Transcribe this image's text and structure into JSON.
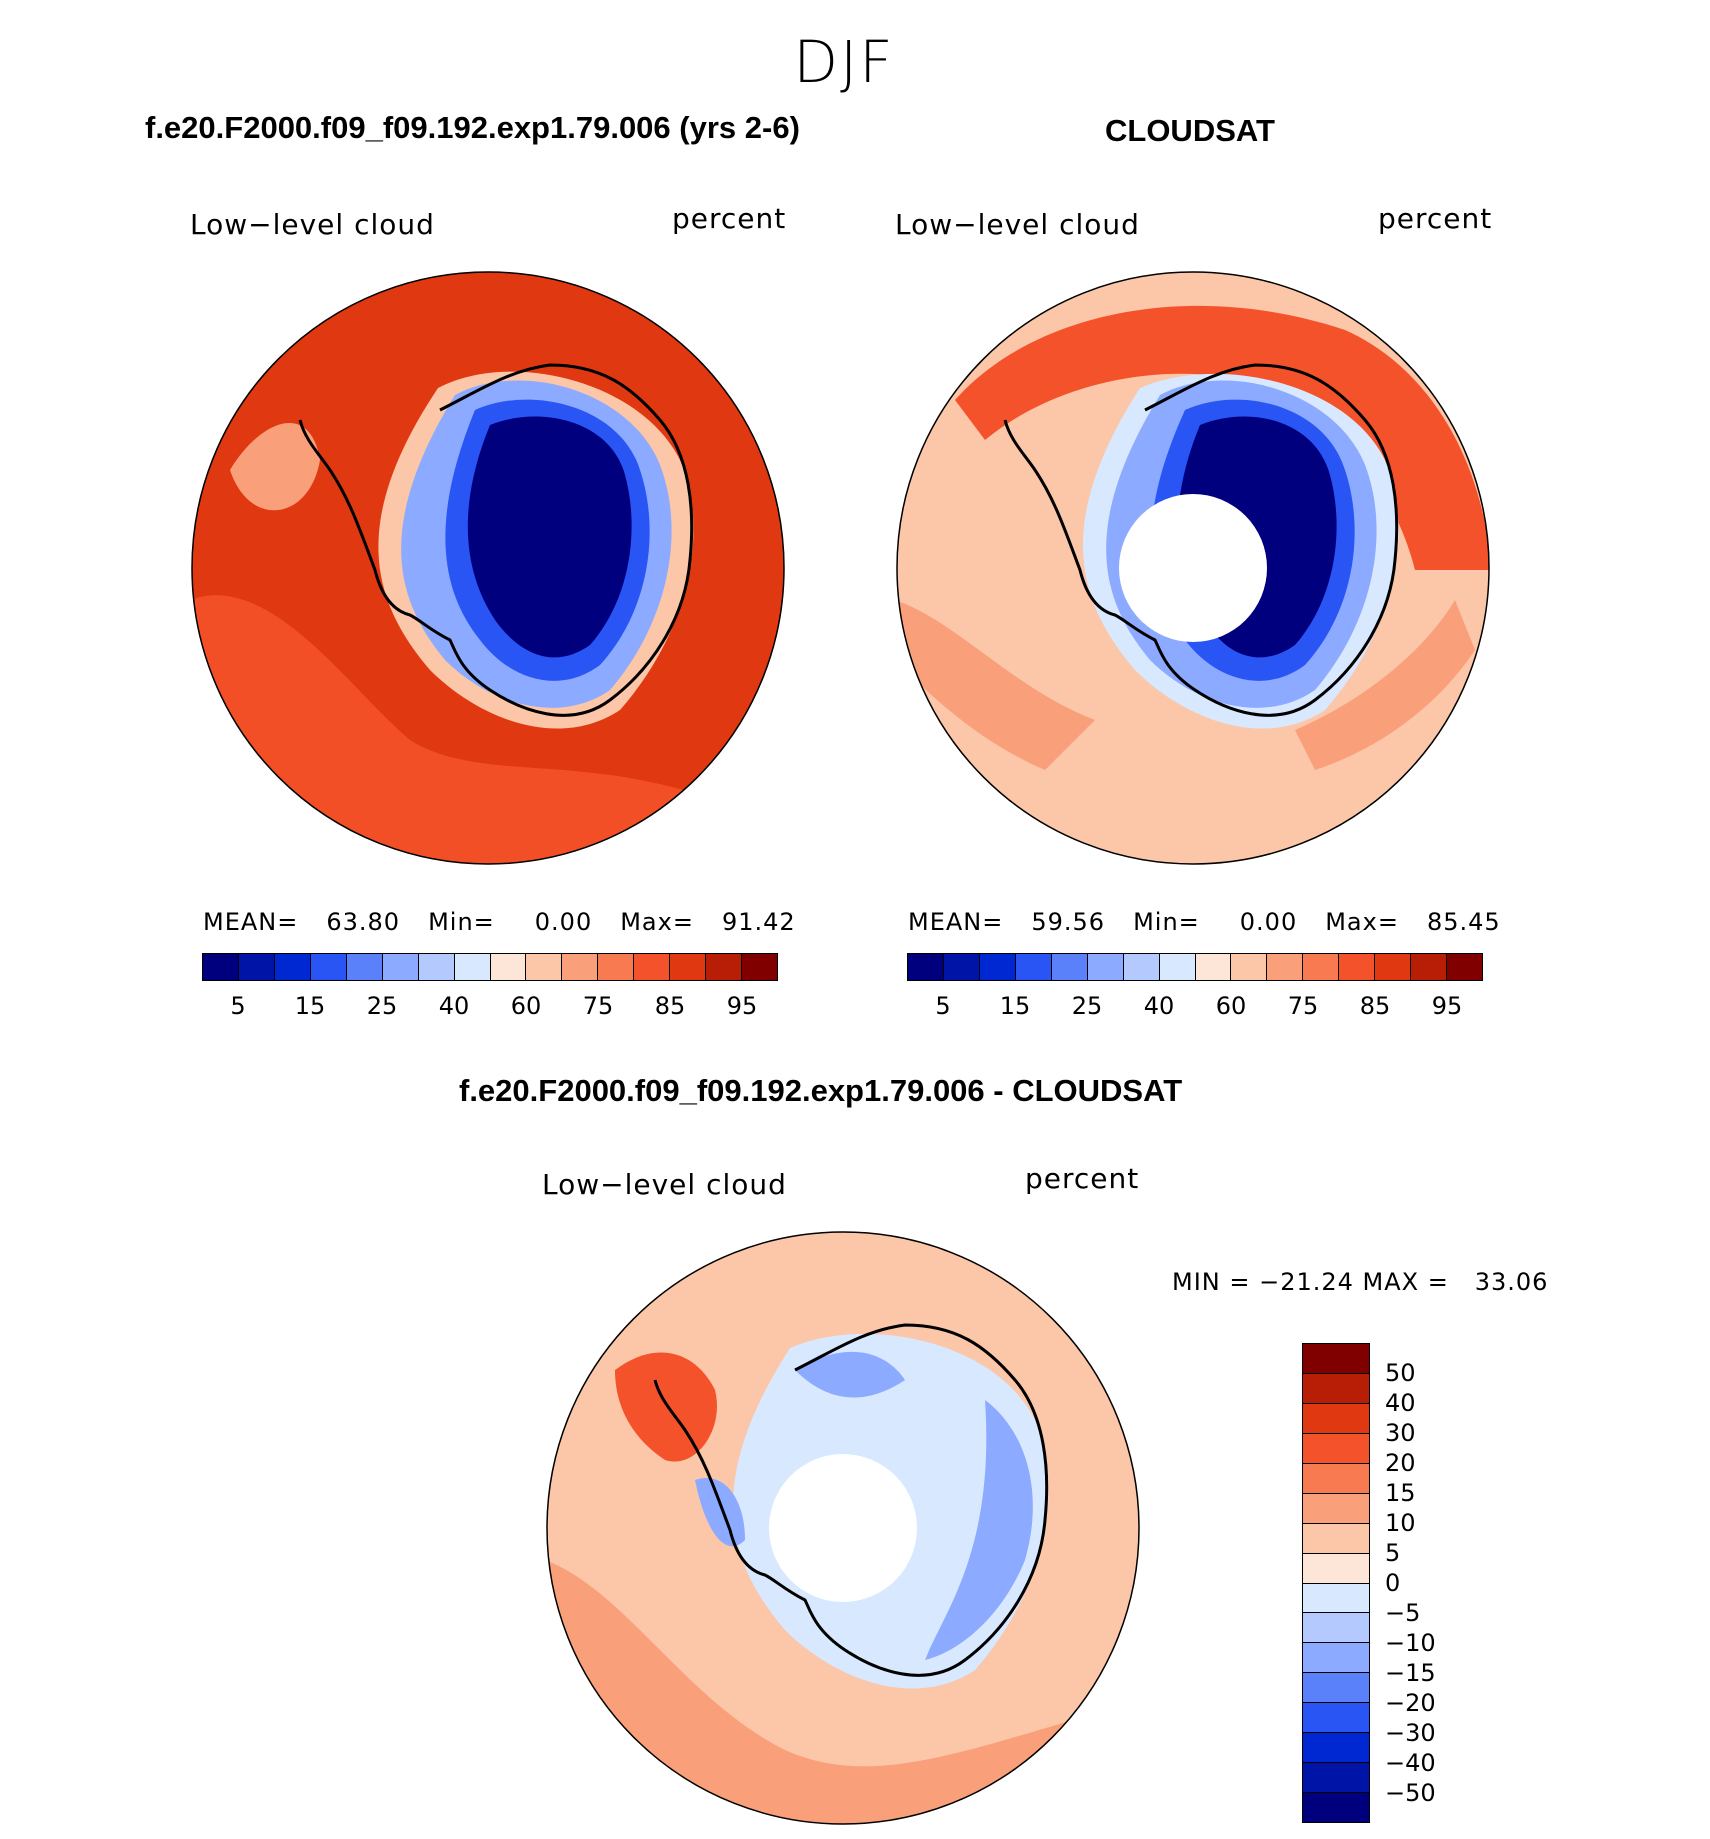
{
  "header": {
    "season": "DJF"
  },
  "panels": {
    "model": {
      "title": "f.e20.F2000.f09_f09.192.exp1.79.006 (yrs 2-6)",
      "variable": "Low−level cloud",
      "units": "percent",
      "mean_label": "MEAN=",
      "mean": "63.80",
      "min_label": "Min=",
      "min": "0.00",
      "max_label": "Max=",
      "max": "91.42"
    },
    "obs": {
      "title": "CLOUDSAT",
      "variable": "Low−level cloud",
      "units": "percent",
      "mean_label": "MEAN=",
      "mean": "59.56",
      "min_label": "Min=",
      "min": "0.00",
      "max_label": "Max=",
      "max": "85.45"
    },
    "diff": {
      "title": "f.e20.F2000.f09_f09.192.exp1.79.006 - CLOUDSAT",
      "variable": "Low−level cloud",
      "units": "percent",
      "minmax_text": "MIN = −21.24 MAX =   33.06"
    }
  },
  "colorbar_abs": {
    "colors": [
      "#00007f",
      "#0014a8",
      "#0028d2",
      "#2a55f5",
      "#5a80fa",
      "#8caaff",
      "#b4caff",
      "#d8e8ff",
      "#fde5d8",
      "#fcc6a8",
      "#f9a07a",
      "#f77a50",
      "#f4522a",
      "#e03810",
      "#b81e05",
      "#800000"
    ],
    "tick_labels": [
      "5",
      "15",
      "25",
      "40",
      "60",
      "75",
      "85",
      "95"
    ]
  },
  "colorbar_diff": {
    "colors": [
      "#800000",
      "#b81e05",
      "#e03810",
      "#f4522a",
      "#f77a50",
      "#f9a07a",
      "#fcc6a8",
      "#fde5d8",
      "#d8e8ff",
      "#b4caff",
      "#8caaff",
      "#5a80fa",
      "#2a55f5",
      "#0028d2",
      "#0014a8",
      "#00007f"
    ],
    "tick_labels": [
      "50",
      "40",
      "30",
      "20",
      "15",
      "10",
      "5",
      "0",
      "−5",
      "−10",
      "−15",
      "−20",
      "−30",
      "−40",
      "−50"
    ]
  },
  "map_colors": {
    "ocean_high": "#e03810",
    "ocean_mid": "#f4522a",
    "ocean_light": "#f9a07a",
    "ocean_pale": "#fcc6a8",
    "ice_low": "#00007f",
    "ice_mid": "#2a55f5",
    "ice_light": "#8caaff",
    "ice_pale": "#d8e8ff",
    "coast": "#000000"
  }
}
